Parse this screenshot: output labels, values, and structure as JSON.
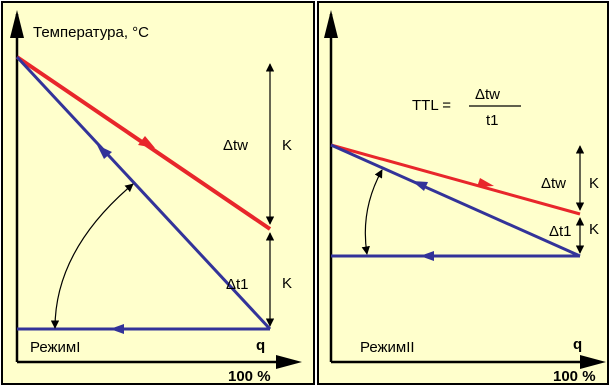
{
  "colors": {
    "panel_bg": "#ffffcc",
    "frame": "#000000",
    "blue": "#333399",
    "red": "#e8262b"
  },
  "left_panel": {
    "y_axis_label": "Температура, °C",
    "delta_tw_label": "Δtw",
    "delta_t1_label": "Δt1",
    "k_label_upper": "K",
    "k_label_lower": "K",
    "mode_label": "РежимI",
    "q_label": "q",
    "x_axis_max_label": "100 %"
  },
  "right_panel": {
    "formula_lhs": "TTL =",
    "formula_numerator": "Δtw",
    "formula_denominator": "t1",
    "delta_tw_label": "Δtw",
    "delta_t1_label": "Δt1",
    "k_label_upper": "K",
    "k_label_lower": "K",
    "mode_label": "РежимII",
    "q_label": "q",
    "x_axis_max_label": "100 %"
  }
}
